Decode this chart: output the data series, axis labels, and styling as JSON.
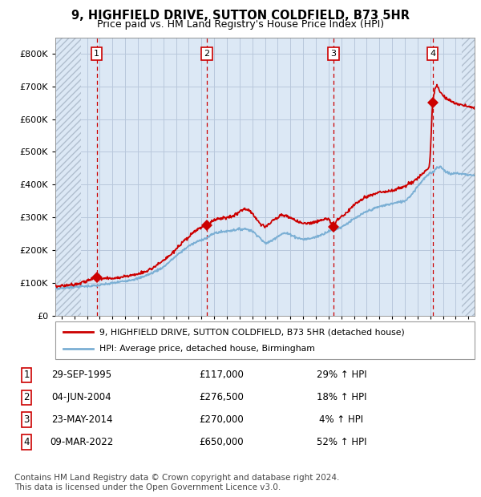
{
  "title": "9, HIGHFIELD DRIVE, SUTTON COLDFIELD, B73 5HR",
  "subtitle": "Price paid vs. HM Land Registry's House Price Index (HPI)",
  "title_fontsize": 10.5,
  "subtitle_fontsize": 9,
  "xlim": [
    1992.5,
    2025.5
  ],
  "ylim": [
    0,
    850000
  ],
  "yticks": [
    0,
    100000,
    200000,
    300000,
    400000,
    500000,
    600000,
    700000,
    800000
  ],
  "ytick_labels": [
    "£0",
    "£100K",
    "£200K",
    "£300K",
    "£400K",
    "£500K",
    "£600K",
    "£700K",
    "£800K"
  ],
  "xtick_years": [
    1993,
    1994,
    1995,
    1996,
    1997,
    1998,
    1999,
    2000,
    2001,
    2002,
    2003,
    2004,
    2005,
    2006,
    2007,
    2008,
    2009,
    2010,
    2011,
    2012,
    2013,
    2014,
    2015,
    2016,
    2017,
    2018,
    2019,
    2020,
    2021,
    2022,
    2023,
    2024,
    2025
  ],
  "hpi_color": "#7bafd4",
  "price_color": "#cc0000",
  "sale_marker_color": "#cc0000",
  "grid_color": "#b8c8dc",
  "bg_color": "#dce8f5",
  "hatch_color": "#b0bece",
  "vline_color": "#cc0000",
  "box_color": "#cc0000",
  "hatch_xleft_end": 1994.5,
  "hatch_xright_start": 2024.5,
  "sales": [
    {
      "num": 1,
      "date": "29-SEP-1995",
      "year": 1995.75,
      "price": 117000,
      "price_str": "£117,000",
      "pct": "29%",
      "dir": "↑"
    },
    {
      "num": 2,
      "date": "04-JUN-2004",
      "year": 2004.42,
      "price": 276500,
      "price_str": "£276,500",
      "pct": "18%",
      "dir": "↑"
    },
    {
      "num": 3,
      "date": "23-MAY-2014",
      "year": 2014.39,
      "price": 270000,
      "price_str": "£270,000",
      "pct": "4%",
      "dir": "↑"
    },
    {
      "num": 4,
      "date": "09-MAR-2022",
      "year": 2022.18,
      "price": 650000,
      "price_str": "£650,000",
      "pct": "52%",
      "dir": "↑"
    }
  ],
  "legend_label_price": "9, HIGHFIELD DRIVE, SUTTON COLDFIELD, B73 5HR (detached house)",
  "legend_label_hpi": "HPI: Average price, detached house, Birmingham",
  "footer": "Contains HM Land Registry data © Crown copyright and database right 2024.\nThis data is licensed under the Open Government Licence v3.0.",
  "footer_fontsize": 7.5
}
